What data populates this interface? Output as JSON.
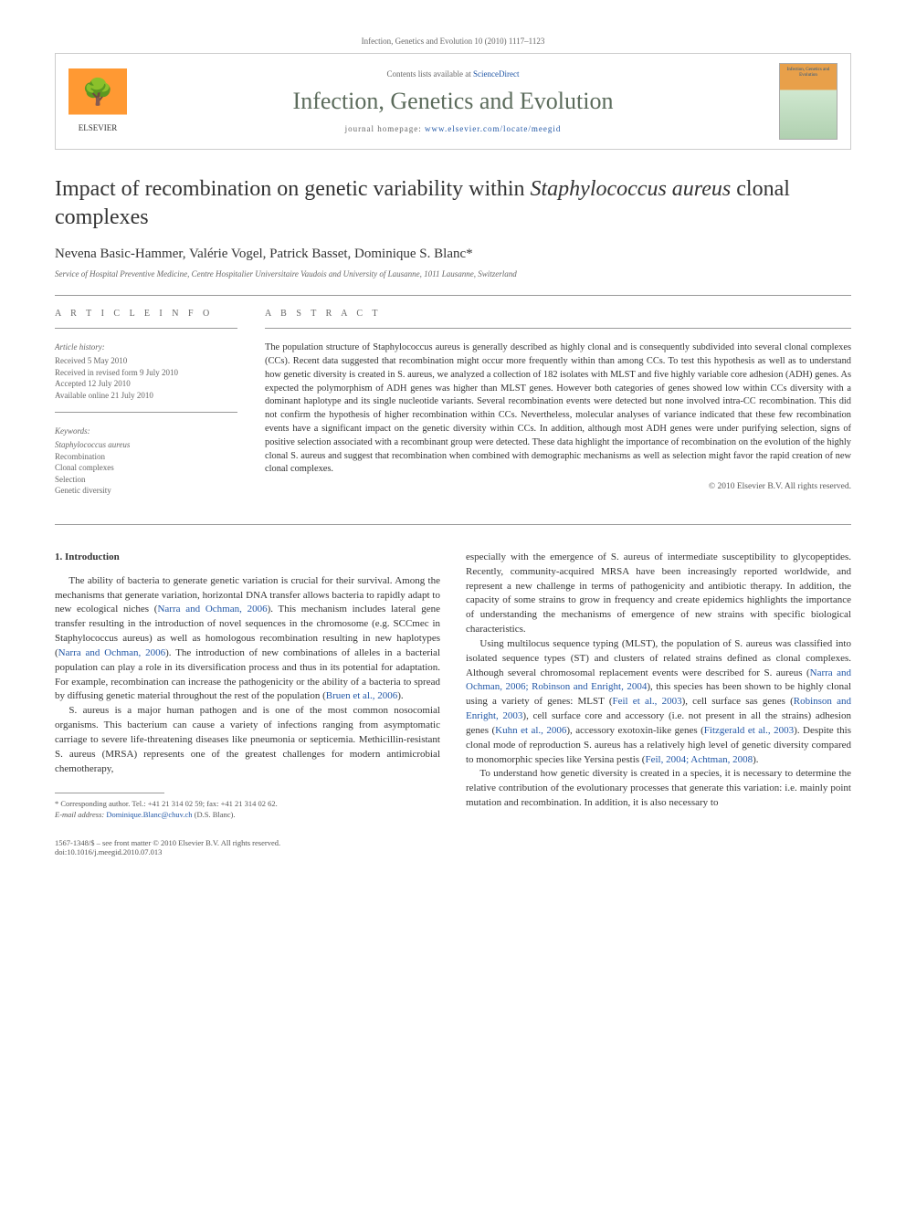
{
  "header_citation": "Infection, Genetics and Evolution 10 (2010) 1117–1123",
  "banner": {
    "elsevier_label": "ELSEVIER",
    "contents_prefix": "Contents lists available at ",
    "contents_link": "ScienceDirect",
    "journal_name": "Infection, Genetics and Evolution",
    "homepage_prefix": "journal homepage: ",
    "homepage_url": "www.elsevier.com/locate/meegid",
    "cover_title": "Infection, Genetics and Evolution"
  },
  "title_prefix": "Impact of recombination on genetic variability within ",
  "title_italic": "Staphylococcus aureus",
  "title_suffix": " clonal complexes",
  "authors": "Nevena Basic-Hammer, Valérie Vogel, Patrick Basset, Dominique S. Blanc",
  "corr_marker": "*",
  "affiliation": "Service of Hospital Preventive Medicine, Centre Hospitalier Universitaire Vaudois and University of Lausanne, 1011 Lausanne, Switzerland",
  "info": {
    "heading_left": "A R T I C L E   I N F O",
    "heading_right": "A B S T R A C T",
    "history_label": "Article history:",
    "received": "Received 5 May 2010",
    "revised": "Received in revised form 9 July 2010",
    "accepted": "Accepted 12 July 2010",
    "online": "Available online 21 July 2010",
    "keywords_label": "Keywords:",
    "kw1": "Staphylococcus aureus",
    "kw2": "Recombination",
    "kw3": "Clonal complexes",
    "kw4": "Selection",
    "kw5": "Genetic diversity"
  },
  "abstract_text": "The population structure of Staphylococcus aureus is generally described as highly clonal and is consequently subdivided into several clonal complexes (CCs). Recent data suggested that recombination might occur more frequently within than among CCs. To test this hypothesis as well as to understand how genetic diversity is created in S. aureus, we analyzed a collection of 182 isolates with MLST and five highly variable core adhesion (ADH) genes. As expected the polymorphism of ADH genes was higher than MLST genes. However both categories of genes showed low within CCs diversity with a dominant haplotype and its single nucleotide variants. Several recombination events were detected but none involved intra-CC recombination. This did not confirm the hypothesis of higher recombination within CCs. Nevertheless, molecular analyses of variance indicated that these few recombination events have a significant impact on the genetic diversity within CCs. In addition, although most ADH genes were under purifying selection, signs of positive selection associated with a recombinant group were detected. These data highlight the importance of recombination on the evolution of the highly clonal S. aureus and suggest that recombination when combined with demographic mechanisms as well as selection might favor the rapid creation of new clonal complexes.",
  "copyright": "© 2010 Elsevier B.V. All rights reserved.",
  "section1_heading": "1. Introduction",
  "para1_a": "The ability of bacteria to generate genetic variation is crucial for their survival. Among the mechanisms that generate variation, horizontal DNA transfer allows bacteria to rapidly adapt to new ecological niches (",
  "para1_ref1": "Narra and Ochman, 2006",
  "para1_b": "). This mechanism includes lateral gene transfer resulting in the introduction of novel sequences in the chromosome (e.g. SCCmec in Staphylococcus aureus) as well as homologous recombination resulting in new haplotypes (",
  "para1_ref2": "Narra and Ochman, 2006",
  "para1_c": "). The introduction of new combinations of alleles in a bacterial population can play a role in its diversification process and thus in its potential for adaptation. For example, recombination can increase the pathogenicity or the ability of a bacteria to spread by diffusing genetic material throughout the rest of the population (",
  "para1_ref3": "Bruen et al., 2006",
  "para1_d": ").",
  "para2": "S. aureus is a major human pathogen and is one of the most common nosocomial organisms. This bacterium can cause a variety of infections ranging from asymptomatic carriage to severe life-threatening diseases like pneumonia or septicemia. Methicillin-resistant S. aureus (MRSA) represents one of the greatest challenges for modern antimicrobial chemotherapy,",
  "para3": "especially with the emergence of S. aureus of intermediate susceptibility to glycopeptides. Recently, community-acquired MRSA have been increasingly reported worldwide, and represent a new challenge in terms of pathogenicity and antibiotic therapy. In addition, the capacity of some strains to grow in frequency and create epidemics highlights the importance of understanding the mechanisms of emergence of new strains with specific biological characteristics.",
  "para4_a": "Using multilocus sequence typing (MLST), the population of S. aureus was classified into isolated sequence types (ST) and clusters of related strains defined as clonal complexes. Although several chromosomal replacement events were described for S. aureus (",
  "para4_ref1": "Narra and Ochman, 2006; Robinson and Enright, 2004",
  "para4_b": "), this species has been shown to be highly clonal using a variety of genes: MLST (",
  "para4_ref2": "Feil et al., 2003",
  "para4_c": "), cell surface sas genes (",
  "para4_ref3": "Robinson and Enright, 2003",
  "para4_d": "), cell surface core and accessory (i.e. not present in all the strains) adhesion genes (",
  "para4_ref4": "Kuhn et al., 2006",
  "para4_e": "), accessory exotoxin-like genes (",
  "para4_ref5": "Fitzgerald et al., 2003",
  "para4_f": "). Despite this clonal mode of reproduction S. aureus has a relatively high level of genetic diversity compared to monomorphic species like Yersina pestis (",
  "para4_ref6": "Feil, 2004; Achtman, 2008",
  "para4_g": ").",
  "para5": "To understand how genetic diversity is created in a species, it is necessary to determine the relative contribution of the evolutionary processes that generate this variation: i.e. mainly point mutation and recombination. In addition, it is also necessary to",
  "footnote": {
    "corr_label": "* Corresponding author. Tel.: +41 21 314 02 59; fax: +41 21 314 02 62.",
    "email_label": "E-mail address: ",
    "email": "Dominique.Blanc@chuv.ch",
    "email_suffix": " (D.S. Blanc)."
  },
  "footer": {
    "left1": "1567-1348/$ – see front matter © 2010 Elsevier B.V. All rights reserved.",
    "left2": "doi:10.1016/j.meegid.2010.07.013"
  }
}
